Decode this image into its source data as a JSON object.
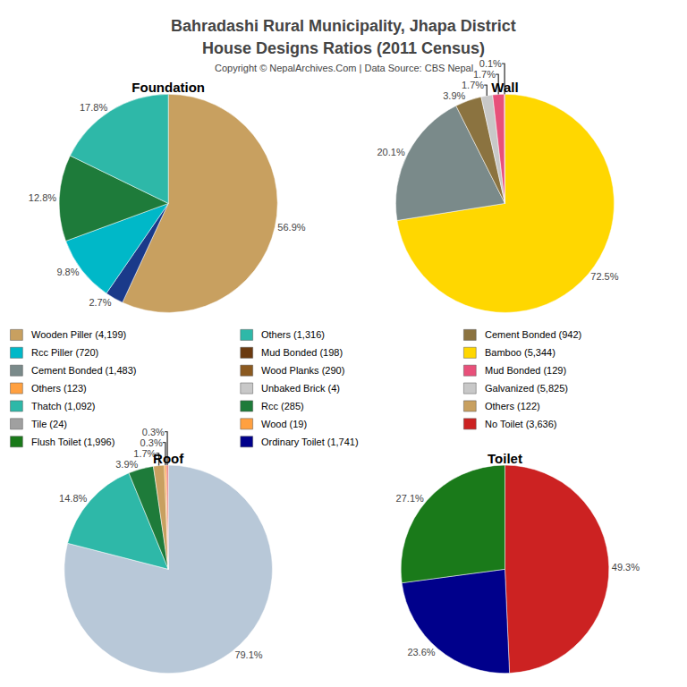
{
  "title": "Bahradashi Rural Municipality, Jhapa District",
  "subtitle": "House Designs Ratios (2011 Census)",
  "annotations": [
    "Copyright © NepalArchives.Com | Data Source: CBS Nepal"
  ],
  "legend_items": [
    [
      {
        "name": "Wooden Piller (4,199)",
        "color": "#C8A060"
      },
      {
        "name": "Rcc Piller (720)",
        "color": "#00B8C8"
      },
      {
        "name": "Cement Bonded (1,483)",
        "color": "#7A8A8A"
      },
      {
        "name": "Others (123)",
        "color": "#FFA040"
      },
      {
        "name": "Thatch (1,092)",
        "color": "#2EB8A8"
      },
      {
        "name": "Tile (24)",
        "color": "#A0A0A0"
      },
      {
        "name": "Flush Toilet (1,996)",
        "color": "#1A7A1A"
      }
    ],
    [
      {
        "name": "Others (1,316)",
        "color": "#2EB8A8"
      },
      {
        "name": "Mud Bonded (198)",
        "color": "#6B3A10"
      },
      {
        "name": "Wood Planks (290)",
        "color": "#8B5A20"
      },
      {
        "name": "Unbaked Brick (4)",
        "color": "#C8C8C8"
      },
      {
        "name": "Rcc (285)",
        "color": "#1E7B3A"
      },
      {
        "name": "Wood (19)",
        "color": "#FFA040"
      },
      {
        "name": "Ordinary Toilet (1,741)",
        "color": "#00008B"
      }
    ],
    [
      {
        "name": "Cement Bonded (942)",
        "color": "#8B7340"
      },
      {
        "name": "Bamboo (5,344)",
        "color": "#FFD700"
      },
      {
        "name": "Mud Bonded (129)",
        "color": "#E8507A"
      },
      {
        "name": "Galvanized (5,825)",
        "color": "#C8C8C8"
      },
      {
        "name": "Others (122)",
        "color": "#C8A060"
      },
      {
        "name": "No Toilet (3,636)",
        "color": "#CC2222"
      }
    ]
  ],
  "chart_data": [
    {
      "type": "pie",
      "title": "Foundation",
      "values": [
        56.9,
        2.7,
        9.8,
        12.8,
        17.8
      ],
      "value_labels": [
        "56.9%",
        "2.7%",
        "9.8%",
        "12.8%",
        "17.8%"
      ],
      "colors": [
        "#C8A060",
        "#1A3A8A",
        "#00B8C8",
        "#1E7B3A",
        "#2EB8A8"
      ],
      "data_labels": true
    },
    {
      "type": "pie",
      "title": "Wall",
      "values": [
        72.5,
        20.1,
        3.9,
        1.7,
        1.7,
        0.1
      ],
      "value_labels": [
        "72.5%",
        "20.1%",
        "3.9%",
        "1.7%",
        "1.7%",
        "0.1%"
      ],
      "colors": [
        "#FFD700",
        "#7A8A8A",
        "#8B7340",
        "#C8C8C8",
        "#E8507A",
        "#CC2222"
      ],
      "data_labels": true
    },
    {
      "type": "pie",
      "title": "Roof",
      "values": [
        79.1,
        14.8,
        3.9,
        1.7,
        0.3,
        0.3
      ],
      "value_labels": [
        "79.1%",
        "14.8%",
        "3.9%",
        "1.7%",
        "0.3%",
        "0.3%"
      ],
      "colors": [
        "#B8C8D8",
        "#2EB8A8",
        "#1E7B3A",
        "#C8A060",
        "#FFA040",
        "#E87878"
      ],
      "data_labels": true
    },
    {
      "type": "pie",
      "title": "Toilet",
      "values": [
        49.3,
        23.6,
        27.1
      ],
      "value_labels": [
        "49.3%",
        "23.6%",
        "27.1%"
      ],
      "colors": [
        "#CC2222",
        "#00008B",
        "#1A7A1A"
      ],
      "data_labels": true
    }
  ]
}
